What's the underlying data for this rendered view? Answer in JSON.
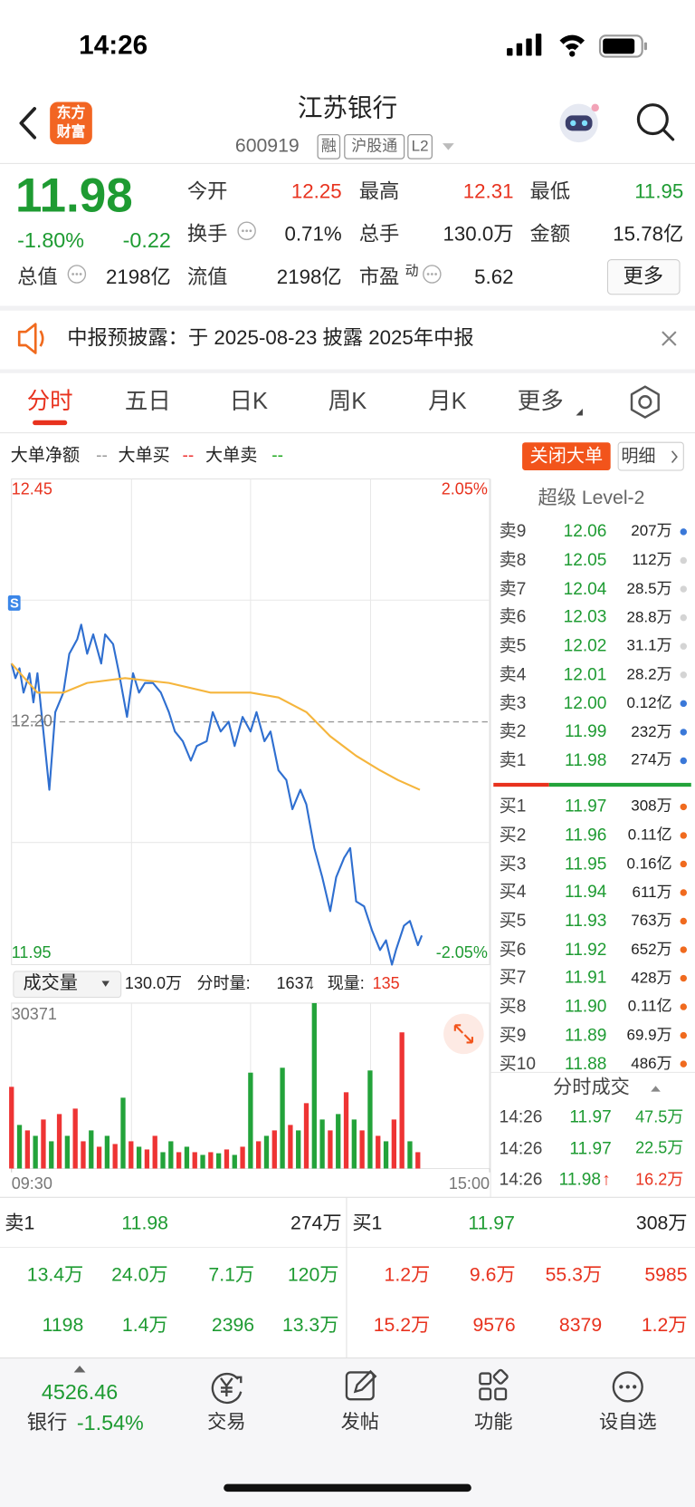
{
  "status_bar": {
    "time": "14:26"
  },
  "header": {
    "logo": [
      "东方",
      "财富"
    ],
    "title": "江苏银行",
    "code": "600919",
    "tags": [
      "融",
      "沪股通",
      "L2"
    ]
  },
  "quote": {
    "price": "11.98",
    "change_percent": "-1.80%",
    "change": "-0.22",
    "stats": [
      {
        "label": "今开",
        "value": "12.25"
      },
      {
        "label": "最高",
        "value": "12.31"
      },
      {
        "label": "最低",
        "value": "11.95"
      },
      {
        "label": "换手",
        "value": "0.71%"
      },
      {
        "label": "总手",
        "value": "130.0万"
      },
      {
        "label": "金额",
        "value": "15.78亿"
      },
      {
        "label": "总值",
        "value": "2198亿"
      },
      {
        "label": "流值",
        "value": "2198亿"
      },
      {
        "label": "市盈",
        "sup": "动",
        "value": "5.62"
      }
    ],
    "more": "更多"
  },
  "notice": {
    "text": "中报预披露：于 2025-08-23 披露 2025年中报"
  },
  "tabs": [
    "分时",
    "五日",
    "日K",
    "周K",
    "月K",
    "更多"
  ],
  "legend": {
    "items": [
      {
        "label": "大单净额",
        "mark": "--"
      },
      {
        "label": "大单买",
        "mark": "--"
      },
      {
        "label": "大单卖",
        "mark": "--"
      }
    ],
    "buttons": [
      "关闭大单",
      "明细"
    ]
  },
  "chart_data": [
    {
      "type": "line",
      "marker": "S",
      "xlim": [
        0,
        240
      ],
      "ylim": [
        11.95,
        12.45
      ],
      "yticks": [
        12.45,
        {
          "value": 12.2,
          "label": "12.20"
        },
        11.95
      ],
      "y2lim": [
        -2.05,
        2.05
      ],
      "y2ticks": [
        {
          "value": 2.05,
          "label": "2.05%"
        },
        {
          "value": -2.05,
          "label": "-2.05%"
        }
      ],
      "series": [
        {
          "color": "#2f6fd0",
          "x": [
            0,
            2,
            4,
            6,
            9,
            11,
            13,
            16,
            19,
            22,
            26,
            29,
            33,
            35,
            38,
            41,
            45,
            47,
            51,
            54,
            58,
            61,
            64,
            67,
            71,
            75,
            79,
            82,
            86,
            90,
            93,
            98,
            101,
            105,
            109,
            112,
            116,
            120,
            123,
            127,
            130,
            134,
            138,
            141,
            145,
            148,
            152,
            156,
            160,
            163,
            167,
            170,
            173,
            177,
            181,
            185,
            188,
            191,
            193,
            197,
            200,
            204,
            206
          ],
          "values": [
            12.26,
            12.245,
            12.255,
            12.23,
            12.25,
            12.22,
            12.25,
            12.19,
            12.13,
            12.21,
            12.23,
            12.27,
            12.285,
            12.3,
            12.27,
            12.29,
            12.26,
            12.29,
            12.28,
            12.25,
            12.205,
            12.25,
            12.23,
            12.24,
            12.24,
            12.23,
            12.21,
            12.19,
            12.18,
            12.16,
            12.175,
            12.18,
            12.21,
            12.19,
            12.2,
            12.175,
            12.205,
            12.19,
            12.21,
            12.18,
            12.19,
            12.15,
            12.14,
            12.11,
            12.13,
            12.115,
            12.07,
            12.04,
            12.005,
            12.04,
            12.06,
            12.07,
            12.015,
            12.01,
            11.985,
            11.965,
            11.975,
            11.95,
            11.965,
            11.99,
            11.995,
            11.97,
            11.98
          ]
        },
        {
          "color": "#f5b53c",
          "x": [
            0,
            13,
            26,
            38,
            57,
            79,
            100,
            120,
            134,
            148,
            160,
            173,
            185,
            194,
            205
          ],
          "values": [
            12.26,
            12.23,
            12.23,
            12.24,
            12.245,
            12.24,
            12.23,
            12.23,
            12.225,
            12.21,
            12.185,
            12.165,
            12.15,
            12.14,
            12.13
          ]
        }
      ]
    },
    {
      "type": "bar",
      "xlim": [
        0,
        240
      ],
      "xticks": [
        {
          "value": 0,
          "label": "09:30"
        },
        {
          "value": 240,
          "label": "15:00"
        }
      ],
      "ylim": [
        0,
        30371
      ],
      "yticks": [
        30371
      ],
      "x": [
        0,
        4,
        8,
        12,
        16,
        20,
        24,
        28,
        32,
        36,
        40,
        44,
        48,
        52,
        56,
        60,
        64,
        68,
        72,
        76,
        80,
        84,
        88,
        92,
        96,
        100,
        104,
        108,
        112,
        116,
        120,
        124,
        128,
        132,
        136,
        140,
        144,
        148,
        152,
        156,
        160,
        164,
        168,
        172,
        176,
        180,
        184,
        188,
        192,
        196,
        200,
        204
      ],
      "values": [
        15000,
        8000,
        7000,
        6000,
        9000,
        5000,
        10000,
        6000,
        11000,
        5000,
        7000,
        4000,
        6000,
        4500,
        13000,
        5000,
        4000,
        3500,
        6000,
        3000,
        5000,
        3000,
        4000,
        3000,
        2500,
        3000,
        2800,
        3500,
        2500,
        4000,
        17600,
        5000,
        6000,
        7000,
        18500,
        8000,
        7000,
        12000,
        30371,
        9000,
        7000,
        10000,
        14000,
        9000,
        7000,
        18000,
        6000,
        5000,
        9000,
        25000,
        5000,
        3000
      ],
      "colors": [
        "#ee3434",
        "#23a33a",
        "#ee3434",
        "#23a33a",
        "#ee3434",
        "#23a33a",
        "#ee3434",
        "#23a33a",
        "#ee3434",
        "#ee3434",
        "#23a33a",
        "#ee3434",
        "#23a33a",
        "#ee3434",
        "#23a33a",
        "#ee3434",
        "#23a33a",
        "#ee3434",
        "#ee3434",
        "#23a33a",
        "#23a33a",
        "#ee3434",
        "#23a33a",
        "#ee3434",
        "#23a33a",
        "#ee3434",
        "#23a33a",
        "#ee3434",
        "#23a33a",
        "#ee3434",
        "#23a33a",
        "#ee3434",
        "#23a33a",
        "#ee3434",
        "#23a33a",
        "#ee3434",
        "#23a33a",
        "#ee3434",
        "#23a33a",
        "#23a33a",
        "#ee3434",
        "#23a33a",
        "#ee3434",
        "#23a33a",
        "#ee3434",
        "#23a33a",
        "#ee3434",
        "#23a33a",
        "#ee3434",
        "#ee3434",
        "#23a33a",
        "#ee3434"
      ]
    }
  ],
  "volume_header": {
    "label": "成交量",
    "total": "130.0万",
    "minute_label": "分时量:",
    "minute_value": "1637",
    "arrow": "↓",
    "current_label": "现量:",
    "current_value": "135"
  },
  "order_book": {
    "title": "超级 Level-2",
    "asks": [
      {
        "label": "卖9",
        "price": "12.06",
        "volume": "207万",
        "dot": "#3a78d8"
      },
      {
        "label": "卖8",
        "price": "12.05",
        "volume": "112万",
        "dot": "#d4d4d4"
      },
      {
        "label": "卖7",
        "price": "12.04",
        "volume": "28.5万",
        "dot": "#d4d4d4"
      },
      {
        "label": "卖6",
        "price": "12.03",
        "volume": "28.8万",
        "dot": "#d4d4d4"
      },
      {
        "label": "卖5",
        "price": "12.02",
        "volume": "31.1万",
        "dot": "#d4d4d4"
      },
      {
        "label": "卖4",
        "price": "12.01",
        "volume": "28.2万",
        "dot": "#d4d4d4"
      },
      {
        "label": "卖3",
        "price": "12.00",
        "volume": "0.12亿",
        "dot": "#3a78d8"
      },
      {
        "label": "卖2",
        "price": "11.99",
        "volume": "232万",
        "dot": "#3a78d8"
      },
      {
        "label": "卖1",
        "price": "11.98",
        "volume": "274万",
        "dot": "#3a78d8"
      }
    ],
    "bids": [
      {
        "label": "买1",
        "price": "11.97",
        "volume": "308万",
        "dot": "#f06a1e"
      },
      {
        "label": "买2",
        "price": "11.96",
        "volume": "0.11亿",
        "dot": "#f06a1e"
      },
      {
        "label": "买3",
        "price": "11.95",
        "volume": "0.16亿",
        "dot": "#f06a1e"
      },
      {
        "label": "买4",
        "price": "11.94",
        "volume": "611万",
        "dot": "#f06a1e"
      },
      {
        "label": "买5",
        "price": "11.93",
        "volume": "763万",
        "dot": "#f06a1e"
      },
      {
        "label": "买6",
        "price": "11.92",
        "volume": "652万",
        "dot": "#f06a1e"
      },
      {
        "label": "买7",
        "price": "11.91",
        "volume": "428万",
        "dot": "#f06a1e"
      },
      {
        "label": "买8",
        "price": "11.90",
        "volume": "0.11亿",
        "dot": "#f06a1e"
      },
      {
        "label": "买9",
        "price": "11.89",
        "volume": "69.9万",
        "dot": "#f06a1e"
      },
      {
        "label": "买10",
        "price": "11.88",
        "volume": "486万",
        "dot": "#f06a1e"
      }
    ]
  },
  "trades": {
    "title": "分时成交",
    "rows": [
      {
        "time": "14:26",
        "price": "11.97",
        "volume": "47.5万"
      },
      {
        "time": "14:26",
        "price": "11.97",
        "volume": "22.5万"
      },
      {
        "time": "14:26",
        "price": "11.98",
        "arrow": "↑",
        "volume": "16.2万"
      }
    ]
  },
  "summary": {
    "ask": {
      "label": "卖1",
      "price": "11.98",
      "volume": "274万"
    },
    "bid": {
      "label": "买1",
      "price": "11.97",
      "volume": "308万"
    },
    "ask_rows": [
      [
        "13.4万",
        "24.0万",
        "7.1万",
        "120万"
      ],
      [
        "1198",
        "1.4万",
        "2396",
        "13.3万"
      ]
    ],
    "bid_rows": [
      [
        "1.2万",
        "9.6万",
        "55.3万",
        "5985"
      ],
      [
        "15.2万",
        "9576",
        "8379",
        "1.2万"
      ]
    ]
  },
  "nav": {
    "index_value": "4526.46",
    "index_name": "银行",
    "index_change": "-1.54%",
    "items": [
      "交易",
      "发帖",
      "功能",
      "设自选"
    ]
  }
}
